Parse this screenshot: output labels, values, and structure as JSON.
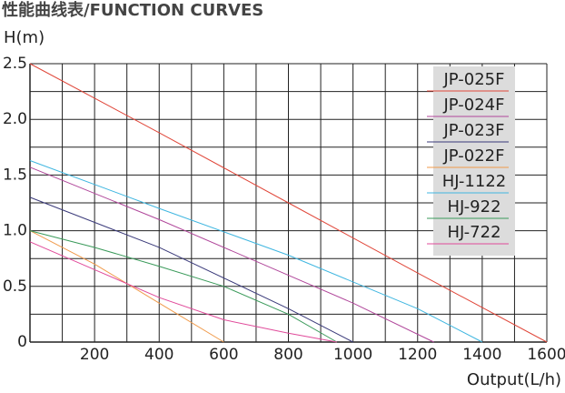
{
  "chart_data": {
    "type": "line",
    "title": "性能曲线表/FUNCTION CURVES",
    "y_label": "H(m)",
    "x_label": "Output(L/h)",
    "xlim": [
      0,
      1600
    ],
    "ylim": [
      0,
      2.5
    ],
    "xticks": [
      200,
      400,
      600,
      800,
      1000,
      1200,
      1400,
      1600
    ],
    "x_minor_ticks": [
      100,
      300,
      500,
      700,
      900,
      1100,
      1300,
      1500
    ],
    "yticks": [
      0,
      {
        "value": 0.5,
        "label": "0.5"
      },
      {
        "value": 1,
        "label": "1.0"
      },
      {
        "value": 1.5,
        "label": "1.5"
      },
      {
        "value": 2,
        "label": "2.0"
      },
      {
        "value": 2.5,
        "label": "2.5"
      }
    ],
    "y_minor_ticks": [
      0.25,
      0.75,
      1.25,
      1.75,
      2.25
    ],
    "grid": true,
    "legend": "upper right",
    "series": [
      {
        "name": "JP-025F",
        "color": "#e0473a",
        "x": [
          0,
          400,
          800,
          1200,
          1600
        ],
        "values": [
          2.5,
          1.88,
          1.25,
          0.62,
          0
        ]
      },
      {
        "name": "JP-024F",
        "color": "#b0469a",
        "x": [
          0,
          400,
          800,
          1000,
          1250
        ],
        "values": [
          1.57,
          1.1,
          0.6,
          0.35,
          0
        ]
      },
      {
        "name": "JP-023F",
        "color": "#3a3a7a",
        "x": [
          0,
          400,
          800,
          1000
        ],
        "values": [
          1.3,
          0.85,
          0.3,
          0
        ]
      },
      {
        "name": "JP-022F",
        "color": "#f09a4a",
        "x": [
          0,
          200,
          400,
          600
        ],
        "values": [
          1.0,
          0.7,
          0.35,
          0
        ]
      },
      {
        "name": "HJ-1122",
        "color": "#3fb6e0",
        "x": [
          0,
          400,
          800,
          1200,
          1400
        ],
        "values": [
          1.63,
          1.2,
          0.78,
          0.3,
          0
        ]
      },
      {
        "name": "HJ-922",
        "color": "#3a9a5a",
        "x": [
          0,
          200,
          400,
          600,
          800,
          950
        ],
        "values": [
          1.0,
          0.85,
          0.68,
          0.5,
          0.25,
          0
        ]
      },
      {
        "name": "HJ-722",
        "color": "#e04a9a",
        "x": [
          0,
          200,
          400,
          600,
          800,
          950
        ],
        "values": [
          0.9,
          0.65,
          0.4,
          0.2,
          0.08,
          0
        ]
      }
    ]
  }
}
